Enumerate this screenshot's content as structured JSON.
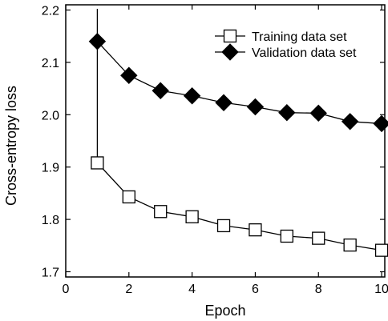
{
  "chart_data": {
    "type": "line",
    "xlabel": "Epoch",
    "ylabel": "Cross-entropy loss",
    "xlim": [
      0,
      10.1
    ],
    "ylim": [
      1.69,
      2.21
    ],
    "x_ticks": [
      "0",
      "2",
      "4",
      "6",
      "8",
      "10"
    ],
    "y_ticks": [
      "1.7",
      "1.8",
      "1.9",
      "2.0",
      "2.1",
      "2.2"
    ],
    "x_tick_values": [
      0,
      2,
      4,
      6,
      8,
      10
    ],
    "y_tick_values": [
      1.7,
      1.8,
      1.9,
      2.0,
      2.1,
      2.2
    ],
    "grid": false,
    "legend_position": "top-right",
    "series": [
      {
        "name": "Training data set",
        "marker": "open-square",
        "color": "#000000",
        "x": [
          1,
          2,
          3,
          4,
          5,
          6,
          7,
          8,
          9,
          10
        ],
        "y": [
          1.908,
          1.843,
          1.815,
          1.805,
          1.788,
          1.78,
          1.768,
          1.764,
          1.751,
          1.741
        ]
      },
      {
        "name": "Validation data set",
        "marker": "filled-diamond",
        "color": "#000000",
        "x": [
          1,
          2,
          3,
          4,
          5,
          6,
          7,
          8,
          9,
          10
        ],
        "y": [
          2.14,
          2.075,
          2.046,
          2.036,
          2.023,
          2.015,
          2.004,
          2.003,
          1.987,
          1.983
        ]
      }
    ]
  }
}
